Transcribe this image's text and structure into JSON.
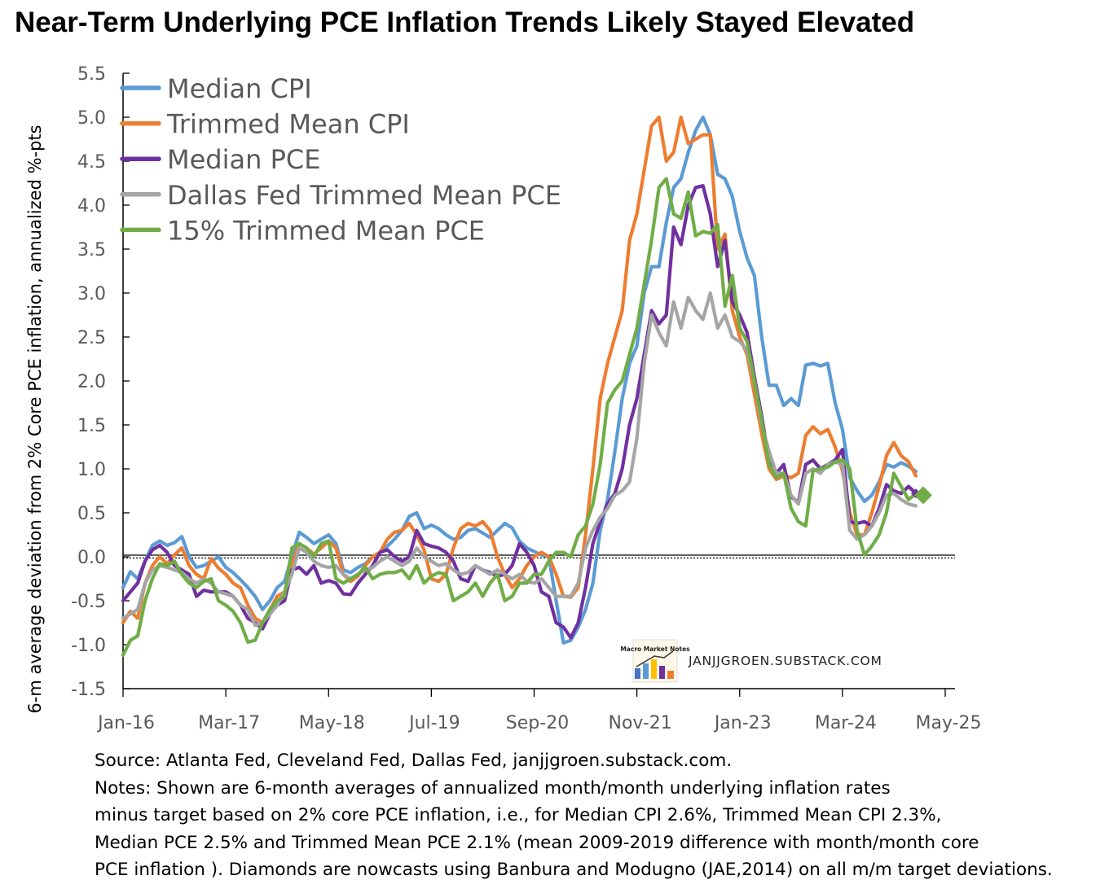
{
  "chart_data": {
    "type": "line",
    "title": "Near-Term Underlying PCE Inflation Trends Likely Stayed Elevated",
    "ylabel": "6-m average deviation from 2% Core PCE inflation, annualized %-pts",
    "xlabel": "",
    "ylim": [
      -1.5,
      5.5
    ],
    "yticks": [
      "5.5",
      "5.0",
      "4.5",
      "4.0",
      "3.5",
      "3.0",
      "2.5",
      "2.0",
      "1.5",
      "1.0",
      "0.5",
      "0.0",
      "-0.5",
      "-1.0",
      "-1.5"
    ],
    "xticks": [
      "Jan-16",
      "Mar-17",
      "May-18",
      "Jul-19",
      "Sep-20",
      "Nov-21",
      "Jan-23",
      "Mar-24",
      "May-25"
    ],
    "grid": false,
    "legend_position": "top-left",
    "x_start": "2016-01",
    "x_end": "2025-05",
    "nowcast_marker": "diamond",
    "series": [
      {
        "name": "Median CPI",
        "color": "#5B9BD5",
        "values": [
          -0.35,
          -0.17,
          -0.25,
          -0.05,
          0.13,
          0.18,
          0.13,
          0.16,
          0.23,
          0.0,
          -0.12,
          -0.1,
          -0.05,
          0.0,
          -0.12,
          -0.18,
          -0.26,
          -0.35,
          -0.45,
          -0.6,
          -0.5,
          -0.35,
          -0.28,
          0.0,
          0.28,
          0.22,
          0.15,
          0.2,
          0.25,
          0.15,
          -0.15,
          -0.18,
          -0.12,
          -0.08,
          0.0,
          0.05,
          0.12,
          0.2,
          0.3,
          0.46,
          0.5,
          0.32,
          0.36,
          0.32,
          0.25,
          0.2,
          0.22,
          0.3,
          0.32,
          0.27,
          0.22,
          0.3,
          0.38,
          0.33,
          0.18,
          0.1,
          0.06,
          0.02,
          0.0,
          -0.5,
          -0.98,
          -0.95,
          -0.8,
          -0.6,
          -0.3,
          0.3,
          0.65,
          1.2,
          1.8,
          2.2,
          2.4,
          3.0,
          3.3,
          3.3,
          3.8,
          4.2,
          4.3,
          4.6,
          4.85,
          5.0,
          4.8,
          4.35,
          4.3,
          4.1,
          3.7,
          3.4,
          3.2,
          2.5,
          1.95,
          1.95,
          1.72,
          1.8,
          1.72,
          2.18,
          2.2,
          2.17,
          2.2,
          1.75,
          1.45,
          0.9,
          0.75,
          0.63,
          0.7,
          0.85,
          1.05,
          1.02,
          1.07,
          1.03,
          0.97
        ]
      },
      {
        "name": "Trimmed Mean CPI",
        "color": "#ED7D31",
        "values": [
          -0.75,
          -0.62,
          -0.7,
          -0.3,
          -0.1,
          0.0,
          -0.08,
          0.02,
          0.1,
          -0.1,
          -0.2,
          -0.25,
          -0.02,
          -0.13,
          -0.2,
          -0.3,
          -0.35,
          -0.55,
          -0.7,
          -0.75,
          -0.6,
          -0.45,
          -0.4,
          -0.1,
          0.15,
          0.1,
          0.03,
          0.1,
          0.18,
          0.1,
          -0.2,
          -0.28,
          -0.22,
          -0.1,
          0.0,
          0.05,
          0.2,
          0.28,
          0.3,
          0.38,
          0.25,
          0.08,
          -0.25,
          -0.28,
          -0.2,
          0.1,
          0.32,
          0.38,
          0.35,
          0.4,
          0.3,
          0.0,
          -0.2,
          -0.35,
          -0.25,
          -0.1,
          0.0,
          0.05,
          0.0,
          -0.2,
          -0.45,
          -0.46,
          -0.35,
          0.25,
          1.0,
          1.8,
          2.2,
          2.5,
          2.8,
          3.6,
          3.9,
          4.4,
          4.9,
          5.0,
          4.5,
          4.6,
          5.0,
          4.7,
          4.75,
          4.8,
          4.8,
          3.5,
          3.67,
          2.8,
          2.5,
          2.3,
          1.85,
          1.4,
          1.0,
          0.88,
          0.92,
          0.9,
          0.95,
          1.38,
          1.48,
          1.4,
          1.45,
          1.25,
          0.98,
          0.5,
          0.25,
          0.25,
          0.5,
          0.8,
          1.15,
          1.3,
          1.15,
          1.08,
          0.92
        ]
      },
      {
        "name": "Median PCE",
        "color": "#7030A0",
        "values": [
          -0.5,
          -0.4,
          -0.3,
          -0.05,
          0.08,
          0.13,
          0.05,
          -0.1,
          -0.15,
          -0.2,
          -0.45,
          -0.38,
          -0.4,
          -0.4,
          -0.4,
          -0.45,
          -0.55,
          -0.7,
          -0.75,
          -0.82,
          -0.65,
          -0.55,
          -0.5,
          -0.15,
          -0.12,
          -0.2,
          -0.1,
          -0.3,
          -0.27,
          -0.3,
          -0.42,
          -0.43,
          -0.3,
          -0.2,
          -0.1,
          0.05,
          0.08,
          0.0,
          -0.05,
          0.0,
          0.3,
          0.15,
          0.12,
          0.1,
          0.05,
          -0.05,
          -0.25,
          -0.28,
          -0.1,
          -0.15,
          -0.18,
          -0.22,
          -0.2,
          -0.1,
          0.15,
          0.05,
          -0.1,
          -0.4,
          -0.45,
          -0.75,
          -0.8,
          -0.92,
          -0.75,
          -0.35,
          0.15,
          0.4,
          0.6,
          0.72,
          1.0,
          1.5,
          1.8,
          2.3,
          2.8,
          2.65,
          2.75,
          3.75,
          3.55,
          4.0,
          4.2,
          4.22,
          3.9,
          3.3,
          3.6,
          2.9,
          2.75,
          2.55,
          2.05,
          1.6,
          1.08,
          0.95,
          1.05,
          0.68,
          0.62,
          1.05,
          1.1,
          1.0,
          1.05,
          1.1,
          1.22,
          0.4,
          0.38,
          0.4,
          0.35,
          0.55,
          0.82,
          0.75,
          0.72,
          0.8,
          0.72
        ]
      },
      {
        "name": "Dallas Fed Trimmed Mean PCE",
        "color": "#A5A5A5",
        "values": [
          -0.7,
          -0.65,
          -0.6,
          -0.3,
          -0.15,
          -0.1,
          -0.12,
          -0.15,
          -0.18,
          -0.25,
          -0.3,
          -0.25,
          -0.3,
          -0.4,
          -0.42,
          -0.45,
          -0.55,
          -0.6,
          -0.78,
          -0.75,
          -0.65,
          -0.55,
          -0.4,
          -0.2,
          0.1,
          0.05,
          -0.05,
          -0.1,
          -0.12,
          -0.1,
          -0.2,
          -0.25,
          -0.2,
          -0.15,
          -0.12,
          -0.05,
          0.0,
          -0.05,
          -0.1,
          -0.05,
          0.1,
          0.0,
          -0.05,
          -0.1,
          -0.08,
          -0.15,
          -0.2,
          -0.18,
          -0.1,
          -0.15,
          -0.2,
          -0.15,
          -0.2,
          -0.25,
          -0.2,
          -0.28,
          -0.3,
          -0.25,
          -0.35,
          -0.45,
          -0.45,
          -0.45,
          -0.3,
          0.1,
          0.3,
          0.45,
          0.55,
          0.7,
          0.75,
          0.85,
          1.35,
          2.2,
          2.75,
          2.55,
          2.4,
          2.9,
          2.6,
          2.95,
          2.8,
          2.7,
          3.0,
          2.6,
          2.75,
          2.5,
          2.45,
          2.35,
          2.0,
          1.5,
          1.2,
          0.95,
          0.95,
          0.7,
          0.6,
          0.95,
          1.0,
          0.95,
          1.05,
          1.08,
          1.05,
          0.3,
          0.2,
          0.25,
          0.35,
          0.5,
          0.7,
          0.72,
          0.65,
          0.6,
          0.58
        ]
      },
      {
        "name": "15% Trimmed Mean PCE",
        "color": "#70AD47",
        "values": [
          -1.12,
          -0.95,
          -0.9,
          -0.5,
          -0.25,
          -0.08,
          -0.1,
          -0.05,
          -0.2,
          -0.3,
          -0.35,
          -0.28,
          -0.25,
          -0.5,
          -0.55,
          -0.62,
          -0.75,
          -0.97,
          -0.95,
          -0.75,
          -0.6,
          -0.5,
          -0.45,
          0.1,
          0.15,
          0.1,
          0.0,
          0.15,
          0.18,
          -0.25,
          -0.3,
          -0.25,
          -0.2,
          -0.12,
          -0.25,
          -0.2,
          -0.18,
          -0.18,
          -0.15,
          -0.25,
          -0.1,
          -0.3,
          -0.22,
          -0.18,
          -0.2,
          -0.5,
          -0.45,
          -0.4,
          -0.3,
          -0.45,
          -0.3,
          -0.2,
          -0.5,
          -0.45,
          -0.3,
          -0.3,
          -0.2,
          -0.2,
          -0.05,
          0.05,
          0.05,
          0.0,
          0.25,
          0.35,
          0.6,
          1.05,
          1.75,
          1.9,
          2.0,
          2.3,
          2.6,
          3.1,
          3.6,
          4.2,
          4.3,
          3.9,
          3.85,
          4.15,
          3.65,
          3.7,
          3.68,
          3.78,
          2.85,
          3.2,
          2.6,
          2.45,
          2.0,
          1.55,
          1.05,
          0.9,
          0.95,
          0.55,
          0.4,
          0.35,
          0.98,
          1.0,
          1.02,
          1.08,
          1.1,
          1.0,
          0.3,
          0.02,
          0.12,
          0.25,
          0.5,
          0.95,
          0.8,
          0.65,
          0.72,
          0.7
        ]
      }
    ],
    "source_text": "Source: Atlanta Fed, Cleveland Fed, Dallas Fed, janjjgroen.substack.com.",
    "notes_lines": [
      "Notes: Shown are 6-month averages of annualized month/month underlying inflation rates",
      "minus target based on 2% core PCE inflation, i.e., for Median CPI 2.6%, Trimmed Mean CPI 2.3%,",
      "Median PCE 2.5% and Trimmed Mean PCE 2.1% (mean 2009-2019 difference with month/month core",
      "PCE inflation ). Diamonds are nowcasts using Banbura and Modugno (JAE,2014) on all m/m target deviations."
    ],
    "logo_text": "Macro Market Notes",
    "watermark": "JANJJGROEN.SUBSTACK.COM"
  }
}
